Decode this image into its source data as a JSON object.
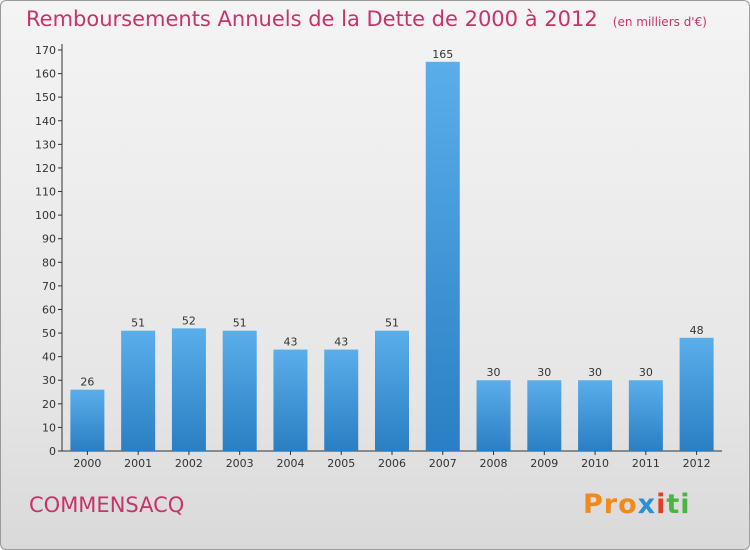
{
  "header": {
    "title": "Remboursements Annuels de la Dette de 2000 à 2012",
    "subtitle": "(en milliers d'€)"
  },
  "footer": {
    "city": "COMMENSACQ",
    "logo": {
      "p1": "Pro",
      "p2": "x",
      "p3": "i",
      "p4": "ti"
    }
  },
  "colors": {
    "bar_top": "#5aaeea",
    "bar_bottom": "#2a7fc4",
    "title": "#c7336b"
  },
  "chart_data": {
    "type": "bar",
    "title": "Remboursements Annuels de la Dette de 2000 à 2012",
    "subtitle": "(en milliers d'€)",
    "categories": [
      "2000",
      "2001",
      "2002",
      "2003",
      "2004",
      "2005",
      "2006",
      "2007",
      "2008",
      "2009",
      "2010",
      "2011",
      "2012"
    ],
    "values": [
      26,
      51,
      52,
      51,
      43,
      43,
      51,
      165,
      30,
      30,
      30,
      30,
      48
    ],
    "ylim": [
      0,
      170
    ],
    "yticks": [
      0,
      10,
      20,
      30,
      40,
      50,
      60,
      70,
      80,
      90,
      100,
      110,
      120,
      130,
      140,
      150,
      160,
      170
    ],
    "grid": false,
    "legend": "none"
  }
}
